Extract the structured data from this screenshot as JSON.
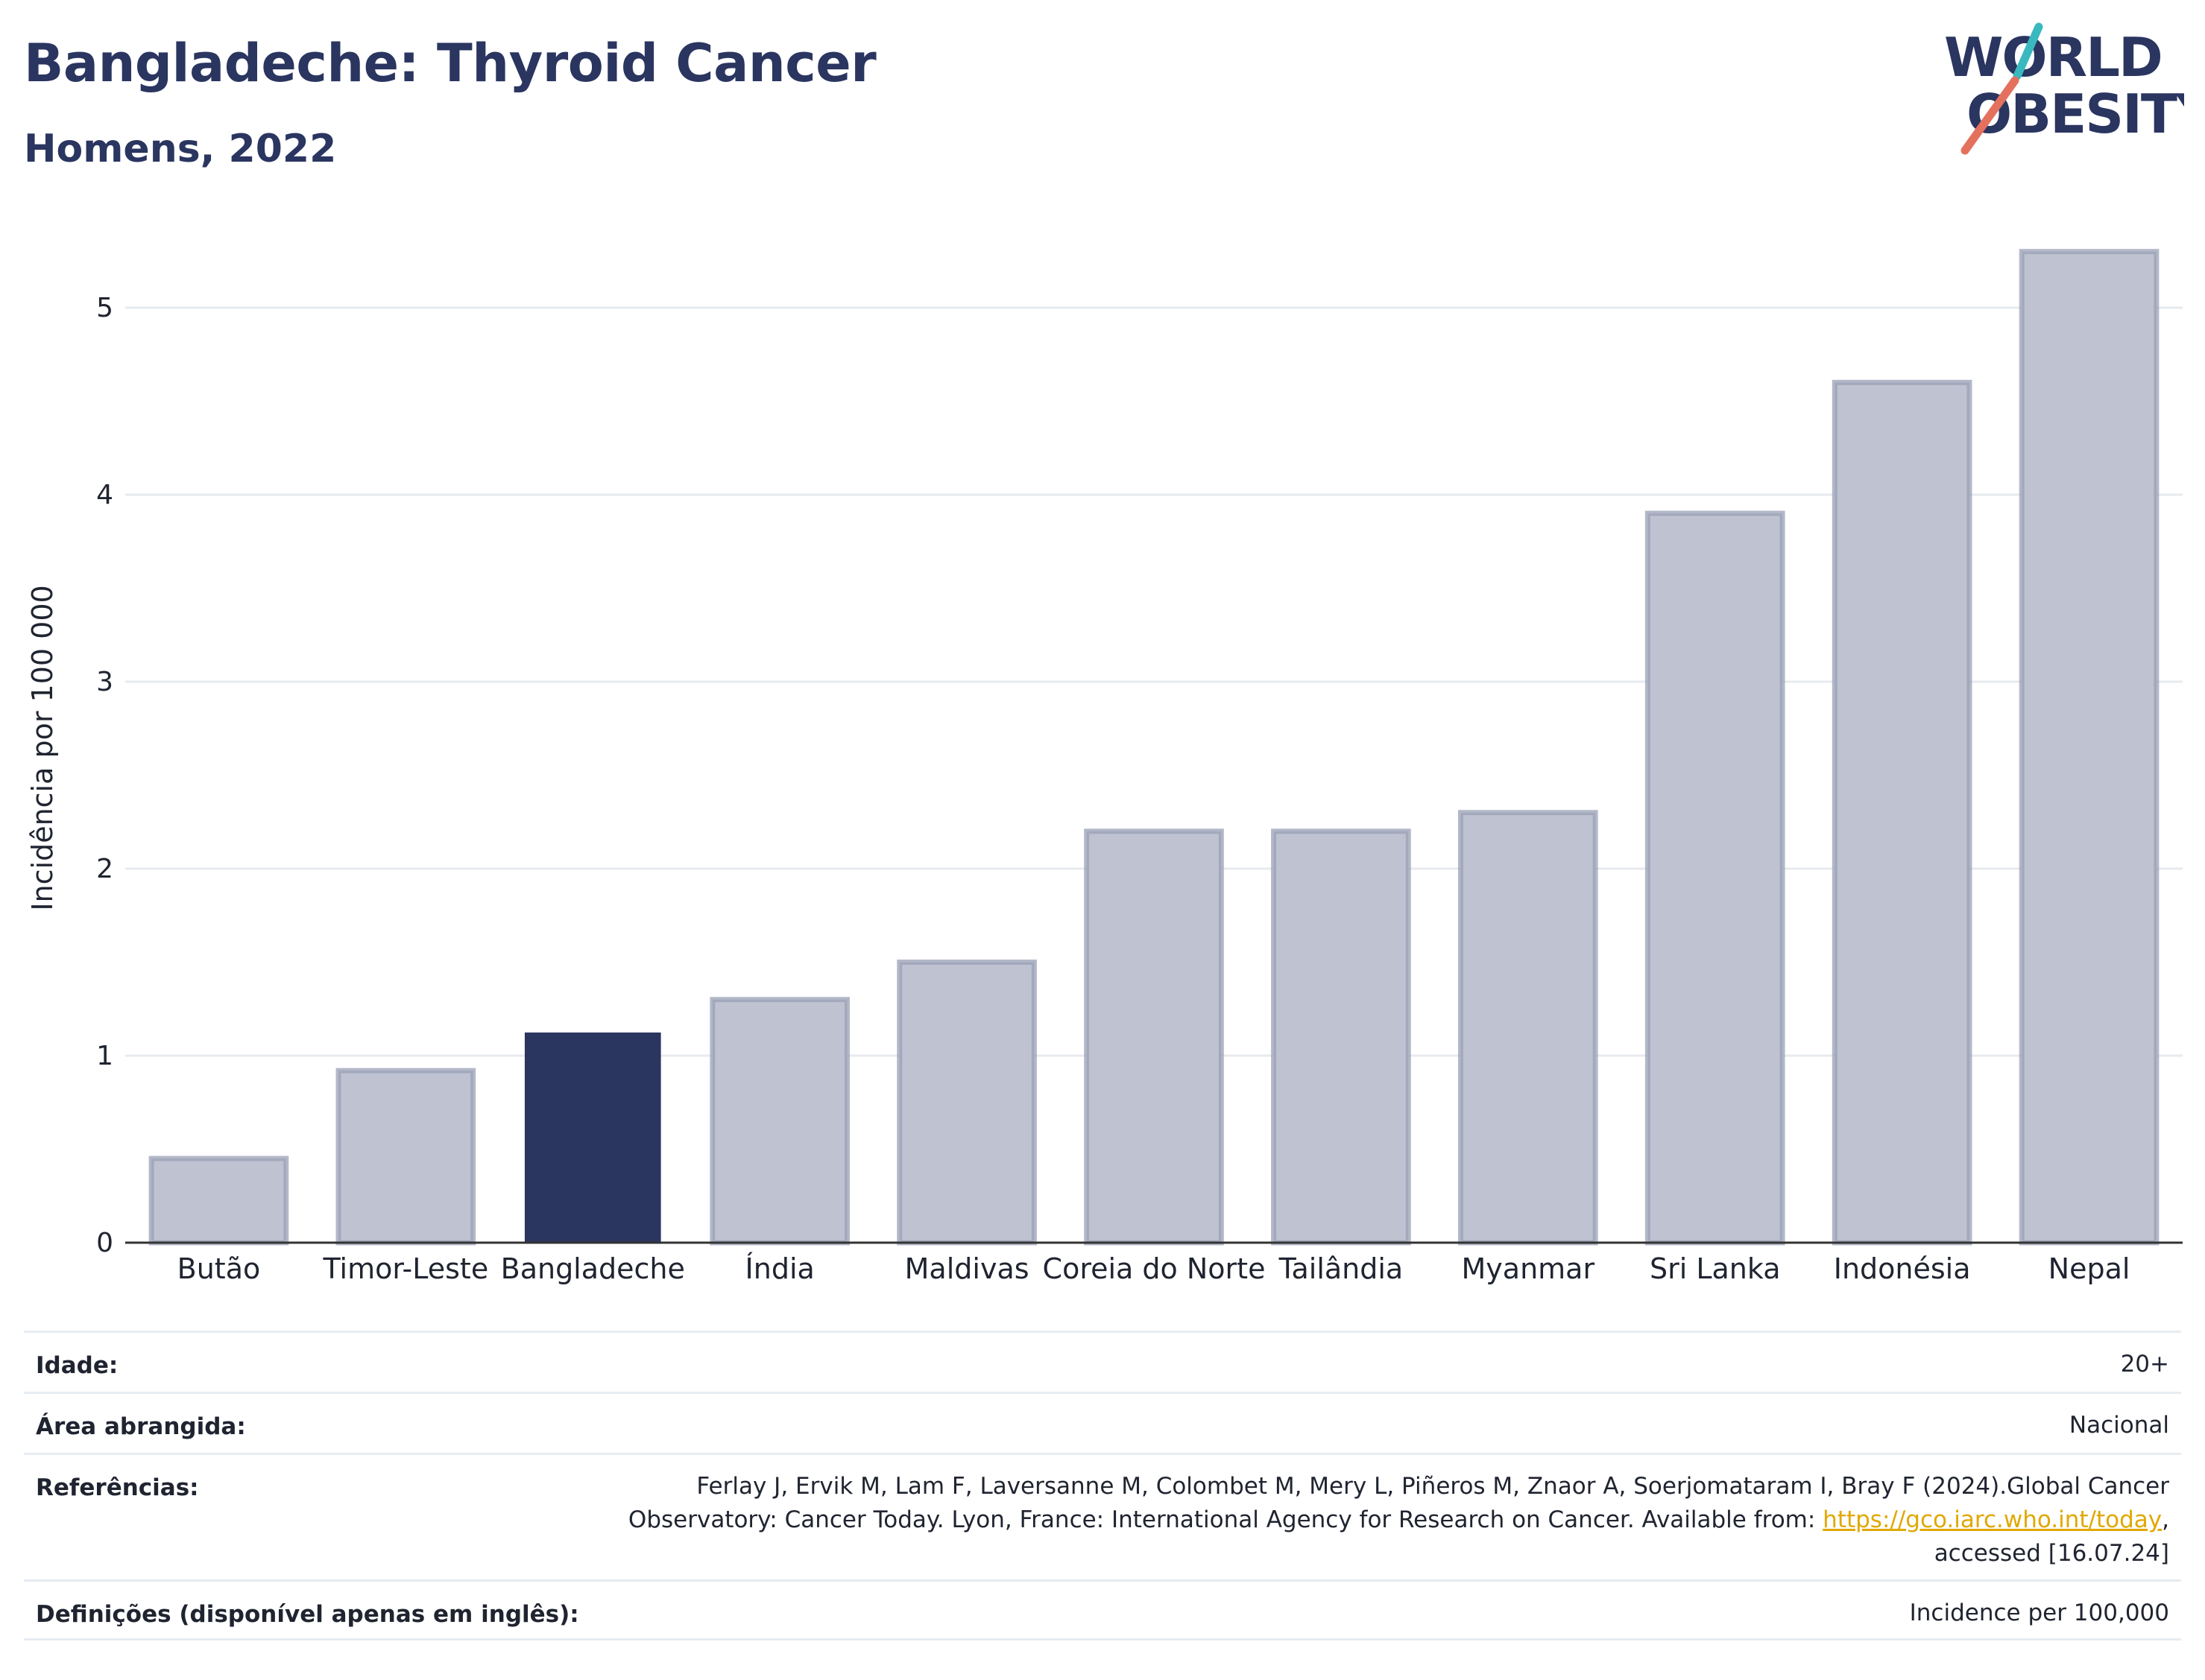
{
  "header": {
    "title": "Bangladeche: Thyroid Cancer",
    "subtitle": "Homens, 2022"
  },
  "logo": {
    "line1": "WORLD",
    "line2": "OBESITY"
  },
  "colors": {
    "highlight": "#2a3560",
    "bar": "#bfc3d1",
    "bar_border": "#9aa0b6",
    "grid": "#e7ebef",
    "logo_text": "#2a3560",
    "logo_teal": "#3ab8bf",
    "logo_coral": "#e4705e"
  },
  "chart_data": {
    "type": "bar",
    "categories": [
      "Butão",
      "Timor-Leste",
      "Bangladeche",
      "Índia",
      "Maldivas",
      "Coreia do Norte",
      "Tailândia",
      "Myanmar",
      "Sri Lanka",
      "Indonésia",
      "Nepal"
    ],
    "values": [
      0.45,
      0.92,
      1.12,
      1.3,
      1.5,
      2.2,
      2.2,
      2.3,
      3.9,
      4.6,
      5.3
    ],
    "highlight": "Bangladeche",
    "ylabel": "Incidência por 100 000",
    "ylim": [
      0,
      5.45
    ],
    "yticks": [
      0,
      1,
      2,
      3,
      4,
      5
    ],
    "grid": true
  },
  "meta": {
    "age_label": "Idade:",
    "age_value": "20+",
    "area_label": "Área abrangida:",
    "area_value": "Nacional",
    "refs_label": "Referências:",
    "refs_text1": "Ferlay J, Ervik M, Lam F, Laversanne M, Colombet M, Mery L, Piñeros M, Znaor A, Soerjomataram I, Bray F (2024).Global Cancer Observatory: Cancer Today. Lyon, France: International Agency for Research on Cancer. Available from: ",
    "refs_link": "https://gco.iarc.who.int/today",
    "refs_text2": ", accessed [16.07.24]",
    "defs_label": "Definições (disponível apenas em inglês):",
    "defs_value": "Incidence per 100,000"
  }
}
